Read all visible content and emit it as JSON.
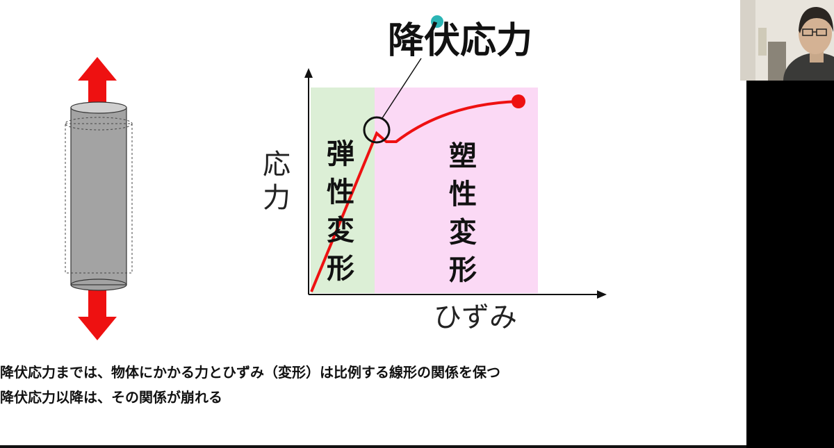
{
  "slide": {
    "title": "降伏応力",
    "y_axis_label": "応力",
    "x_axis_label": "ひずみ",
    "elastic_label": "弾性変形",
    "plastic_label": "塑性変形",
    "captions": [
      "降伏応力までは、物体にかかる力とひずみ（変形）は比例する線形の関係を保つ",
      "降伏応力以降は、その関係が崩れる"
    ]
  },
  "colors": {
    "curve": "#ee1111",
    "elastic_region": "#dcefd6",
    "plastic_region": "#fbd9f5",
    "cursor_dot": "#2bb5b5"
  },
  "icons": {
    "tension_arrows": "red-double-arrow-icon",
    "specimen": "cylinder-specimen-icon"
  }
}
